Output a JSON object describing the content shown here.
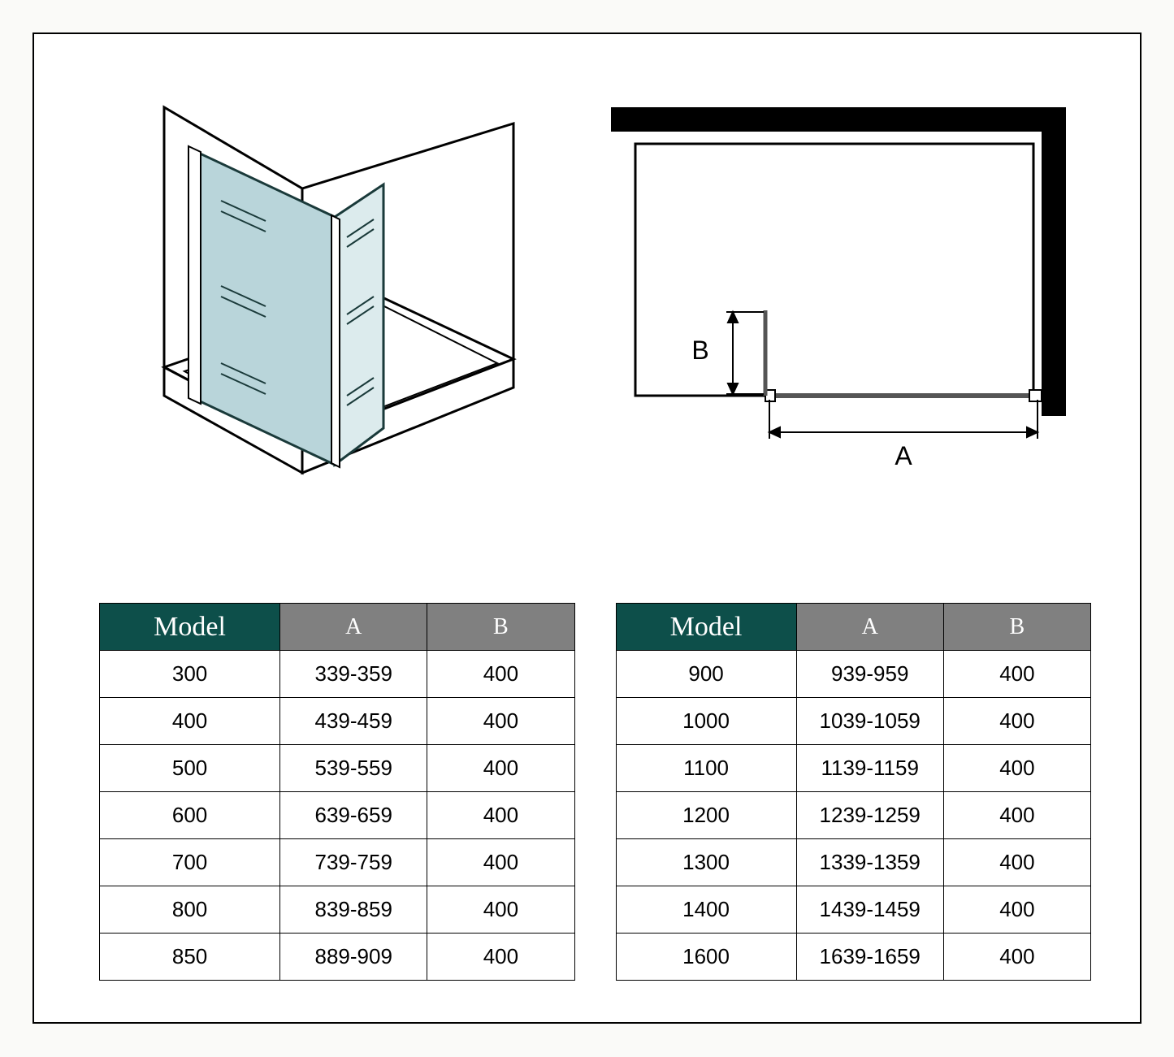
{
  "colors": {
    "header_model": "#0d4f4a",
    "header_dim": "#808080",
    "border": "#000000",
    "glass_fill": "#b9d5da",
    "glass_stroke": "#1a3a3a",
    "background": "#ffffff"
  },
  "diagrams": {
    "plan": {
      "label_A": "A",
      "label_B": "B",
      "font_size": 30
    }
  },
  "table_left": {
    "headers": {
      "model": "Model",
      "a": "A",
      "b": "B"
    },
    "rows": [
      {
        "model": "300",
        "a": "339-359",
        "b": "400"
      },
      {
        "model": "400",
        "a": "439-459",
        "b": "400"
      },
      {
        "model": "500",
        "a": "539-559",
        "b": "400"
      },
      {
        "model": "600",
        "a": "639-659",
        "b": "400"
      },
      {
        "model": "700",
        "a": "739-759",
        "b": "400"
      },
      {
        "model": "800",
        "a": "839-859",
        "b": "400"
      },
      {
        "model": "850",
        "a": "889-909",
        "b": "400"
      }
    ]
  },
  "table_right": {
    "headers": {
      "model": "Model",
      "a": "A",
      "b": "B"
    },
    "rows": [
      {
        "model": "900",
        "a": "939-959",
        "b": "400"
      },
      {
        "model": "1000",
        "a": "1039-1059",
        "b": "400"
      },
      {
        "model": "1100",
        "a": "1139-1159",
        "b": "400"
      },
      {
        "model": "1200",
        "a": "1239-1259",
        "b": "400"
      },
      {
        "model": "1300",
        "a": "1339-1359",
        "b": "400"
      },
      {
        "model": "1400",
        "a": "1439-1459",
        "b": "400"
      },
      {
        "model": "1600",
        "a": "1639-1659",
        "b": "400"
      }
    ]
  }
}
